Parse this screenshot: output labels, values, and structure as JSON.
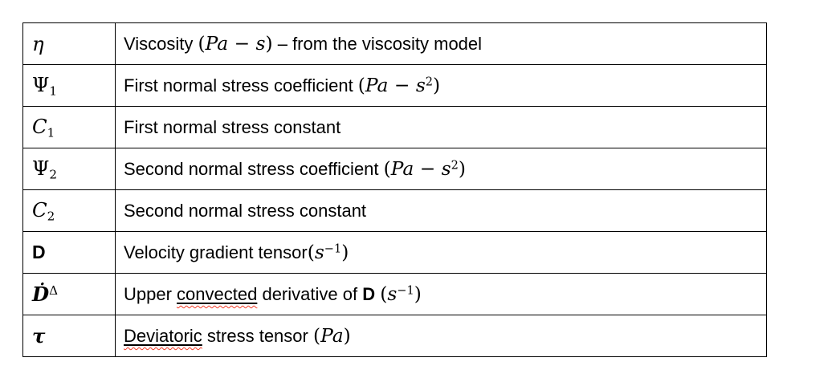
{
  "colors": {
    "background": "#ffffff",
    "border": "#000000",
    "text": "#000000",
    "spellcheck_squiggle": "#f23a26"
  },
  "table": {
    "name": "symbol-nomenclature-table",
    "columns": [
      "symbol",
      "description"
    ],
    "rows": [
      {
        "symbol": [
          {
            "t": "η",
            "s": "mi"
          }
        ],
        "desc": [
          {
            "t": "Viscosity ",
            "s": "p"
          },
          {
            "t": "(",
            "s": "m"
          },
          {
            "t": "Pa",
            "s": "mi"
          },
          {
            "t": " − ",
            "s": "m"
          },
          {
            "t": "s",
            "s": "mi"
          },
          {
            "t": ")",
            "s": "m"
          },
          {
            "t": " – from the viscosity model",
            "s": "p"
          }
        ]
      },
      {
        "symbol": [
          {
            "t": "Ψ",
            "s": "m"
          },
          {
            "t": "1",
            "s": "sub"
          }
        ],
        "desc": [
          {
            "t": "First normal stress coefficient ",
            "s": "p"
          },
          {
            "t": "(",
            "s": "m"
          },
          {
            "t": "Pa",
            "s": "mi"
          },
          {
            "t": " − ",
            "s": "m"
          },
          {
            "t": "s",
            "s": "mi"
          },
          {
            "t": "2",
            "s": "sup"
          },
          {
            "t": ")",
            "s": "m"
          }
        ]
      },
      {
        "symbol": [
          {
            "t": "C",
            "s": "mi"
          },
          {
            "t": "1",
            "s": "sub"
          }
        ],
        "desc": [
          {
            "t": "First normal stress constant",
            "s": "p"
          }
        ]
      },
      {
        "symbol": [
          {
            "t": "Ψ",
            "s": "m"
          },
          {
            "t": "2",
            "s": "sub"
          }
        ],
        "desc": [
          {
            "t": "Second normal stress coefficient ",
            "s": "p"
          },
          {
            "t": "(",
            "s": "m"
          },
          {
            "t": "Pa",
            "s": "mi"
          },
          {
            "t": " − ",
            "s": "m"
          },
          {
            "t": "s",
            "s": "mi"
          },
          {
            "t": "2",
            "s": "sup"
          },
          {
            "t": ")",
            "s": "m"
          }
        ]
      },
      {
        "symbol": [
          {
            "t": "C",
            "s": "mi"
          },
          {
            "t": "2",
            "s": "sub"
          }
        ],
        "desc": [
          {
            "t": "Second normal stress constant",
            "s": "p"
          }
        ]
      },
      {
        "symbol": [
          {
            "t": "D",
            "s": "b"
          }
        ],
        "desc": [
          {
            "t": "Velocity gradient tensor",
            "s": "p"
          },
          {
            "t": "(",
            "s": "m"
          },
          {
            "t": "s",
            "s": "mi"
          },
          {
            "t": "−1",
            "s": "sup"
          },
          {
            "t": ")",
            "s": "m"
          }
        ]
      },
      {
        "symbol": [
          {
            "t": "Ḋ",
            "s": "mbi"
          },
          {
            "t": "Δ",
            "s": "sup"
          }
        ],
        "desc": [
          {
            "t": "Upper ",
            "s": "p"
          },
          {
            "t": "convected",
            "s": "u",
            "wrap": "sq"
          },
          {
            "t": " derivative of ",
            "s": "p"
          },
          {
            "t": "D",
            "s": "b"
          },
          {
            "t": " ",
            "s": "p"
          },
          {
            "t": "(",
            "s": "m"
          },
          {
            "t": "s",
            "s": "mi"
          },
          {
            "t": "−1",
            "s": "sup"
          },
          {
            "t": ")",
            "s": "m"
          }
        ]
      },
      {
        "symbol": [
          {
            "t": "τ",
            "s": "mbi"
          }
        ],
        "desc": [
          {
            "t": "Deviatoric",
            "s": "u",
            "wrap": "sq"
          },
          {
            "t": " stress tensor ",
            "s": "p"
          },
          {
            "t": "(",
            "s": "m"
          },
          {
            "t": "Pa",
            "s": "mi"
          },
          {
            "t": ")",
            "s": "m"
          }
        ]
      }
    ]
  }
}
